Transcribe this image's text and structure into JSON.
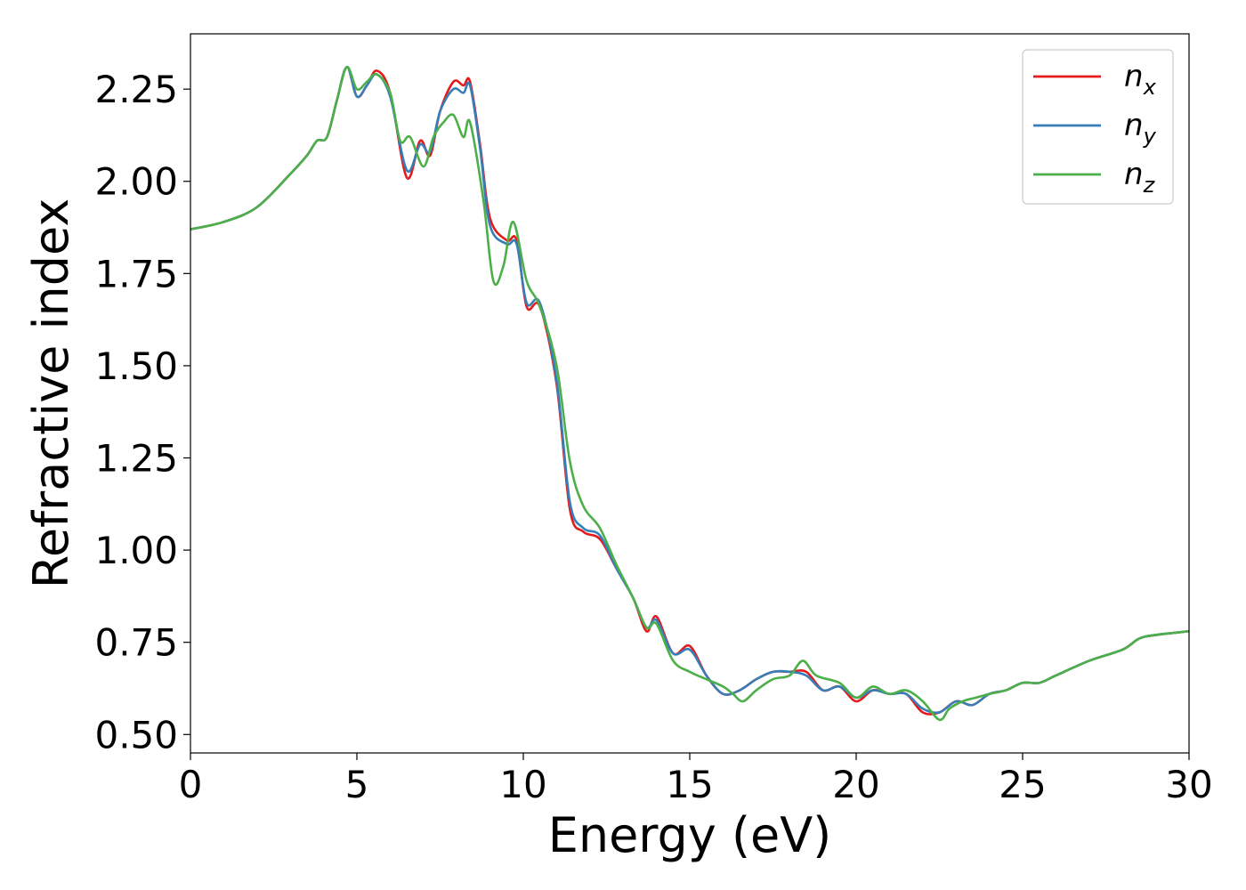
{
  "chart_data": {
    "type": "line",
    "title": "",
    "xlabel": "Energy (eV)",
    "ylabel": "Refractive index",
    "xlim": [
      0,
      30
    ],
    "ylim": [
      0.45,
      2.4
    ],
    "xticks": [
      0,
      5,
      10,
      15,
      20,
      25,
      30
    ],
    "yticks": [
      0.5,
      0.75,
      1.0,
      1.25,
      1.5,
      1.75,
      2.0,
      2.25
    ],
    "xtick_labels": [
      "0",
      "5",
      "10",
      "15",
      "20",
      "25",
      "30"
    ],
    "ytick_labels": [
      "0.50",
      "0.75",
      "1.00",
      "1.25",
      "1.50",
      "1.75",
      "2.00",
      "2.25"
    ],
    "grid": false,
    "legend_position": "top-right",
    "series": [
      {
        "name": "n_x",
        "legend_base": "n",
        "legend_sub": "x",
        "color": "#e41a1c",
        "x": [
          0,
          1,
          2,
          3,
          3.5,
          3.8,
          4.1,
          4.4,
          4.7,
          5.0,
          5.3,
          5.6,
          6.0,
          6.5,
          6.9,
          7.2,
          7.5,
          7.9,
          8.2,
          8.4,
          8.7,
          9.0,
          9.5,
          9.8,
          10.1,
          10.5,
          11.0,
          11.4,
          11.8,
          12.3,
          12.8,
          13.3,
          13.7,
          14.0,
          14.5,
          15.0,
          15.5,
          16.0,
          16.5,
          17.0,
          17.5,
          18.0,
          18.5,
          19.0,
          19.5,
          20.0,
          20.5,
          21.0,
          21.5,
          22.0,
          22.5,
          23.0,
          23.5,
          24.0,
          24.5,
          25.0,
          25.5,
          26.0,
          27.0,
          28.0,
          28.5,
          29.0,
          30.0
        ],
        "y": [
          1.87,
          1.89,
          1.93,
          2.02,
          2.07,
          2.11,
          2.12,
          2.22,
          2.31,
          2.23,
          2.26,
          2.3,
          2.24,
          2.01,
          2.11,
          2.07,
          2.19,
          2.27,
          2.26,
          2.27,
          2.1,
          1.9,
          1.84,
          1.84,
          1.66,
          1.66,
          1.45,
          1.11,
          1.05,
          1.03,
          0.95,
          0.87,
          0.78,
          0.82,
          0.72,
          0.74,
          0.66,
          0.61,
          0.62,
          0.65,
          0.67,
          0.67,
          0.67,
          0.62,
          0.63,
          0.59,
          0.62,
          0.61,
          0.61,
          0.56,
          0.56,
          0.59,
          0.58,
          0.61,
          0.62,
          0.64,
          0.64,
          0.66,
          0.7,
          0.73,
          0.76,
          0.77,
          0.78
        ]
      },
      {
        "name": "n_y",
        "legend_base": "n",
        "legend_sub": "y",
        "color": "#377eb8",
        "x": [
          0,
          1,
          2,
          3,
          3.5,
          3.8,
          4.1,
          4.4,
          4.7,
          5.0,
          5.3,
          5.6,
          6.0,
          6.5,
          6.9,
          7.2,
          7.5,
          7.9,
          8.2,
          8.4,
          8.7,
          9.0,
          9.5,
          9.8,
          10.1,
          10.5,
          11.0,
          11.4,
          11.8,
          12.3,
          12.8,
          13.3,
          13.7,
          14.0,
          14.5,
          15.0,
          15.5,
          16.0,
          16.5,
          17.0,
          17.5,
          18.0,
          18.5,
          19.0,
          19.5,
          20.0,
          20.5,
          21.0,
          21.5,
          22.0,
          22.5,
          23.0,
          23.5,
          24.0,
          24.5,
          25.0,
          25.5,
          26.0,
          27.0,
          28.0,
          28.5,
          29.0,
          30.0
        ],
        "y": [
          1.87,
          1.89,
          1.93,
          2.02,
          2.07,
          2.11,
          2.12,
          2.22,
          2.31,
          2.23,
          2.26,
          2.29,
          2.23,
          2.03,
          2.1,
          2.08,
          2.19,
          2.25,
          2.24,
          2.26,
          2.09,
          1.88,
          1.83,
          1.83,
          1.67,
          1.67,
          1.46,
          1.13,
          1.06,
          1.04,
          0.95,
          0.87,
          0.79,
          0.81,
          0.72,
          0.73,
          0.66,
          0.61,
          0.62,
          0.65,
          0.67,
          0.67,
          0.66,
          0.62,
          0.63,
          0.6,
          0.62,
          0.61,
          0.61,
          0.57,
          0.56,
          0.59,
          0.58,
          0.61,
          0.62,
          0.64,
          0.64,
          0.66,
          0.7,
          0.73,
          0.76,
          0.77,
          0.78
        ]
      },
      {
        "name": "n_z",
        "legend_base": "n",
        "legend_sub": "z",
        "color": "#4daf4a",
        "x": [
          0,
          1,
          2,
          3,
          3.5,
          3.8,
          4.1,
          4.4,
          4.7,
          5.0,
          5.3,
          5.6,
          6.0,
          6.3,
          6.6,
          7.0,
          7.3,
          7.6,
          7.9,
          8.2,
          8.4,
          8.8,
          9.1,
          9.4,
          9.7,
          10.1,
          10.5,
          11.0,
          11.4,
          11.8,
          12.3,
          12.8,
          13.3,
          13.7,
          14.0,
          14.5,
          15.0,
          15.5,
          16.0,
          16.3,
          16.6,
          17.0,
          17.5,
          18.0,
          18.4,
          18.8,
          19.5,
          20.0,
          20.5,
          21.0,
          21.5,
          22.0,
          22.5,
          22.8,
          23.2,
          23.6,
          24.0,
          24.5,
          25.0,
          25.5,
          26.0,
          27.0,
          28.0,
          28.5,
          29.0,
          30.0
        ],
        "y": [
          1.87,
          1.89,
          1.93,
          2.02,
          2.07,
          2.11,
          2.12,
          2.22,
          2.31,
          2.25,
          2.27,
          2.29,
          2.24,
          2.11,
          2.12,
          2.04,
          2.12,
          2.16,
          2.18,
          2.12,
          2.16,
          1.95,
          1.73,
          1.77,
          1.89,
          1.73,
          1.66,
          1.5,
          1.24,
          1.12,
          1.06,
          0.96,
          0.87,
          0.79,
          0.8,
          0.7,
          0.67,
          0.65,
          0.63,
          0.61,
          0.59,
          0.62,
          0.65,
          0.66,
          0.7,
          0.66,
          0.64,
          0.6,
          0.63,
          0.61,
          0.62,
          0.59,
          0.54,
          0.57,
          0.59,
          0.6,
          0.61,
          0.62,
          0.64,
          0.64,
          0.66,
          0.7,
          0.73,
          0.76,
          0.77,
          0.78
        ]
      }
    ]
  }
}
